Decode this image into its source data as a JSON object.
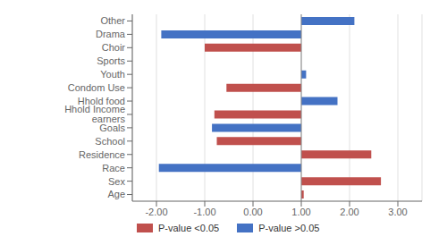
{
  "chart_data": {
    "type": "bar",
    "orientation": "horizontal",
    "categories": [
      "Other",
      "Drama",
      "Choir",
      "Sports",
      "Youth",
      "Condom Use",
      "Hhold food",
      "Hhold Income earners",
      "Goals",
      "School",
      "Residence",
      "Race",
      "Sex",
      "Age"
    ],
    "series": [
      {
        "name": "P-value <0.05",
        "color": "#c0504d",
        "values": [
          null,
          null,
          [
            -1.0,
            1.0
          ],
          [
            1.0,
            1.0
          ],
          null,
          [
            -0.55,
            1.0
          ],
          null,
          [
            -0.8,
            1.0
          ],
          null,
          [
            -0.75,
            1.0
          ],
          [
            1.0,
            2.45
          ],
          null,
          [
            1.0,
            2.65
          ],
          [
            1.0,
            1.05
          ]
        ]
      },
      {
        "name": "P-value >0.05",
        "color": "#4472c4",
        "values": [
          [
            1.0,
            2.1
          ],
          [
            -1.9,
            1.0
          ],
          null,
          null,
          [
            1.0,
            1.1
          ],
          null,
          [
            1.0,
            1.75
          ],
          null,
          [
            -0.85,
            1.0
          ],
          null,
          null,
          [
            -1.95,
            1.0
          ],
          null,
          null
        ]
      }
    ],
    "xlim": [
      -2.5,
      3.5
    ],
    "xticks": [
      {
        "value": -2.0,
        "label": "-2.00"
      },
      {
        "value": -1.0,
        "label": "-1.00"
      },
      {
        "value": 0.0,
        "label": "0.00"
      },
      {
        "value": 1.0,
        "label": "1.00"
      },
      {
        "value": 2.0,
        "label": "2.00"
      },
      {
        "value": 3.0,
        "label": "3.00"
      }
    ],
    "grid": true,
    "legend": "bottom",
    "reference_line": 1.0
  }
}
